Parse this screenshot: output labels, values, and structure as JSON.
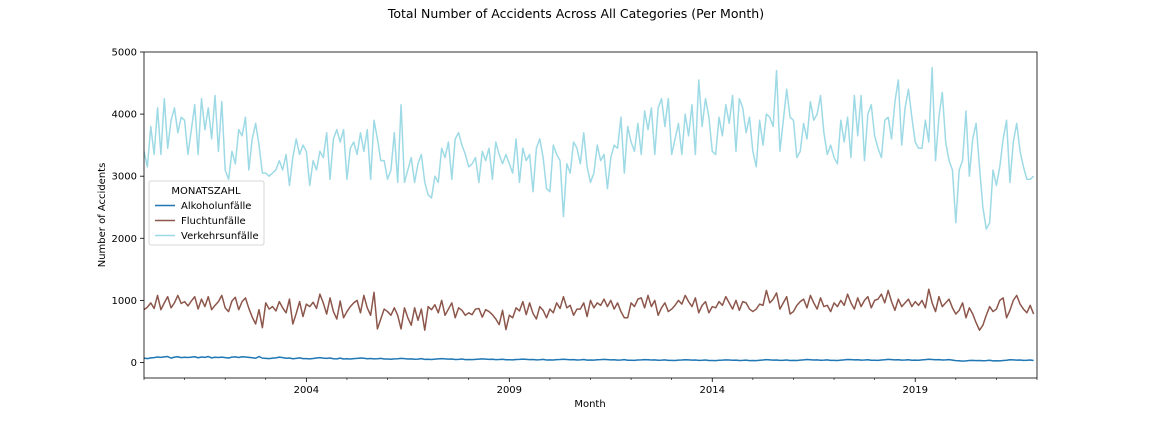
{
  "chart_data": {
    "type": "line",
    "title": "Total Number of Accidents Across All Categories (Per Month)",
    "xlabel": "Month",
    "ylabel": "Number of Accidents",
    "xlim": [
      2000.0,
      2022.0
    ],
    "ylim": [
      -250,
      5000
    ],
    "y_ticks": [
      0,
      1000,
      2000,
      3000,
      4000,
      5000
    ],
    "y_tick_labels": [
      "0",
      "1000",
      "2000",
      "3000",
      "4000",
      "5000"
    ],
    "x_ticks": [
      2004,
      2009,
      2014,
      2019
    ],
    "x_tick_labels": [
      "2004",
      "2009",
      "2014",
      "2019"
    ],
    "grid": false,
    "legend": {
      "title": "MONATSZAHL",
      "placement": "center-left"
    },
    "months_start": "2000-01",
    "months_end": "2021-12",
    "series": [
      {
        "name": "Alkoholunfälle",
        "color": "#1f77b4",
        "values": [
          70,
          62,
          74,
          78,
          88,
          82,
          90,
          96,
          70,
          86,
          92,
          78,
          84,
          80,
          86,
          92,
          76,
          88,
          82,
          96,
          74,
          84,
          80,
          86,
          78,
          72,
          86,
          90,
          80,
          92,
          88,
          82,
          76,
          68,
          96,
          70,
          66,
          62,
          70,
          74,
          86,
          78,
          68,
          72,
          60,
          66,
          74,
          62,
          62,
          58,
          64,
          72,
          78,
          70,
          66,
          72,
          60,
          58,
          70,
          56,
          60,
          56,
          62,
          66,
          72,
          68,
          60,
          64,
          58,
          60,
          66,
          56,
          56,
          52,
          58,
          60,
          66,
          62,
          56,
          58,
          52,
          54,
          62,
          50,
          52,
          48,
          54,
          58,
          62,
          58,
          54,
          56,
          48,
          50,
          56,
          46,
          48,
          46,
          50,
          54,
          58,
          54,
          50,
          52,
          46,
          48,
          52,
          44,
          44,
          42,
          48,
          50,
          54,
          50,
          46,
          48,
          42,
          44,
          50,
          40,
          42,
          40,
          46,
          48,
          52,
          48,
          44,
          46,
          40,
          42,
          48,
          38,
          40,
          38,
          44,
          46,
          50,
          46,
          42,
          44,
          38,
          40,
          46,
          36,
          36,
          34,
          40,
          42,
          46,
          44,
          40,
          42,
          36,
          38,
          42,
          34,
          34,
          32,
          38,
          40,
          44,
          42,
          38,
          40,
          34,
          36,
          40,
          32,
          32,
          30,
          36,
          38,
          42,
          40,
          36,
          38,
          32,
          34,
          38,
          30,
          32,
          30,
          36,
          40,
          46,
          42,
          38,
          40,
          34,
          36,
          40,
          32,
          34,
          32,
          38,
          42,
          48,
          44,
          40,
          42,
          36,
          38,
          42,
          34,
          34,
          32,
          38,
          42,
          48,
          46,
          42,
          44,
          38,
          40,
          44,
          36,
          36,
          34,
          40,
          44,
          50,
          46,
          42,
          44,
          38,
          40,
          44,
          36,
          38,
          36,
          42,
          46,
          52,
          48,
          44,
          46,
          40,
          42,
          46,
          38,
          30,
          28,
          22,
          26,
          32,
          34,
          30,
          32,
          28,
          30,
          36,
          26,
          28,
          26,
          32,
          36,
          44,
          42,
          38,
          40,
          34,
          36,
          40,
          32
        ]
      },
      {
        "name": "Fluchtunfälle",
        "color": "#8c564b",
        "values": [
          850,
          890,
          960,
          870,
          1080,
          850,
          960,
          1060,
          880,
          960,
          1080,
          950,
          980,
          910,
          990,
          1060,
          860,
          1020,
          900,
          1060,
          850,
          920,
          980,
          1080,
          880,
          820,
          990,
          1050,
          850,
          980,
          1040,
          870,
          730,
          620,
          850,
          560,
          960,
          860,
          900,
          830,
          980,
          880,
          800,
          1020,
          620,
          790,
          980,
          740,
          940,
          900,
          970,
          870,
          1100,
          960,
          780,
          1040,
          820,
          700,
          990,
          720,
          820,
          900,
          960,
          1000,
          800,
          1080,
          880,
          760,
          1130,
          540,
          700,
          860,
          820,
          760,
          880,
          760,
          540,
          880,
          720,
          600,
          880,
          680,
          860,
          520,
          900,
          850,
          930,
          800,
          1000,
          760,
          860,
          960,
          720,
          880,
          840,
          760,
          800,
          770,
          860,
          870,
          730,
          850,
          820,
          770,
          700,
          610,
          840,
          530,
          760,
          720,
          880,
          830,
          980,
          770,
          960,
          790,
          700,
          900,
          840,
          720,
          860,
          800,
          960,
          870,
          1060,
          880,
          920,
          760,
          860,
          860,
          960,
          740,
          1000,
          880,
          960,
          920,
          1020,
          900,
          1000,
          860,
          960,
          820,
          720,
          720,
          960,
          900,
          1020,
          1040,
          880,
          1080,
          900,
          1000,
          760,
          880,
          960,
          820,
          860,
          920,
          1000,
          940,
          1080,
          980,
          900,
          1040,
          800,
          920,
          980,
          800,
          900,
          880,
          980,
          920,
          1060,
          960,
          860,
          1000,
          840,
          980,
          960,
          860,
          820,
          860,
          940,
          920,
          1160,
          960,
          1020,
          1120,
          860,
          960,
          1060,
          780,
          820,
          920,
          980,
          1020,
          880,
          1080,
          960,
          860,
          1040,
          900,
          920,
          820,
          960,
          900,
          1000,
          920,
          1100,
          960,
          860,
          1040,
          900,
          1000,
          1060,
          880,
          1000,
          1020,
          1100,
          960,
          1160,
          980,
          840,
          1020,
          900,
          960,
          1020,
          900,
          980,
          920,
          1000,
          880,
          1180,
          960,
          820,
          1060,
          900,
          960,
          1020,
          880,
          780,
          840,
          960,
          720,
          880,
          780,
          640,
          520,
          600,
          760,
          900,
          820,
          860,
          1000,
          1040,
          720,
          840,
          1000,
          1080,
          940,
          860,
          800,
          920,
          780
        ]
      },
      {
        "name": "Verkehrsunfälle",
        "color": "#9edae5",
        "values": [
          3400,
          3150,
          3800,
          3350,
          4100,
          3350,
          4250,
          3450,
          3900,
          4100,
          3700,
          3950,
          3900,
          3350,
          3750,
          4150,
          3350,
          4250,
          3750,
          4100,
          3600,
          4300,
          3400,
          4200,
          3100,
          2950,
          3400,
          3200,
          3750,
          3650,
          3950,
          3100,
          3600,
          3850,
          3500,
          3050,
          3050,
          3000,
          3050,
          3100,
          3250,
          3100,
          3350,
          2850,
          3300,
          3600,
          3350,
          3500,
          3400,
          2850,
          3250,
          3100,
          3400,
          3300,
          3700,
          2950,
          3600,
          3750,
          3550,
          3750,
          2950,
          3450,
          3550,
          3350,
          3700,
          3400,
          3750,
          2950,
          3900,
          3600,
          3250,
          3250,
          2950,
          3100,
          3700,
          2900,
          4150,
          2900,
          3100,
          3300,
          2900,
          3200,
          3350,
          2900,
          2700,
          2650,
          3000,
          2900,
          3450,
          3300,
          3550,
          2950,
          3600,
          3700,
          3500,
          3350,
          3150,
          3200,
          3300,
          2900,
          3400,
          3250,
          3450,
          2950,
          3550,
          3350,
          3200,
          3350,
          3200,
          3050,
          3600,
          2900,
          3450,
          3250,
          3350,
          2750,
          3450,
          3600,
          3300,
          2800,
          2750,
          3500,
          3350,
          3250,
          2350,
          3200,
          3050,
          3550,
          3450,
          3200,
          3700,
          3150,
          2900,
          3050,
          3500,
          3250,
          3350,
          2800,
          3300,
          3500,
          3450,
          3950,
          3050,
          3800,
          3550,
          3400,
          3850,
          3350,
          4050,
          3750,
          4100,
          3350,
          4100,
          4250,
          3800,
          4250,
          3350,
          3600,
          3850,
          3350,
          4000,
          3650,
          4150,
          3350,
          4550,
          3800,
          4250,
          3950,
          3400,
          3350,
          3950,
          3650,
          4150,
          3850,
          4300,
          3400,
          4250,
          4100,
          3700,
          3950,
          3400,
          3150,
          3900,
          3500,
          4000,
          3950,
          3800,
          4700,
          3400,
          3900,
          4400,
          3950,
          3900,
          3300,
          3400,
          3850,
          3600,
          4200,
          3900,
          4000,
          4300,
          3700,
          3350,
          3500,
          3300,
          3200,
          3900,
          3550,
          3950,
          3300,
          4300,
          3650,
          4300,
          3250,
          4000,
          4150,
          3650,
          3450,
          3300,
          3900,
          3950,
          3600,
          4200,
          4550,
          3500,
          4100,
          4400,
          3950,
          3550,
          3450,
          3450,
          3900,
          3550,
          4750,
          3250,
          3950,
          4350,
          3550,
          3250,
          3100,
          2250,
          3100,
          3250,
          4050,
          3000,
          3600,
          3850,
          3150,
          2500,
          2150,
          2250,
          3100,
          2850,
          3150,
          3600,
          3900,
          2900,
          3550,
          3850,
          3400,
          3150,
          2950,
          2950,
          3000
        ]
      }
    ]
  }
}
